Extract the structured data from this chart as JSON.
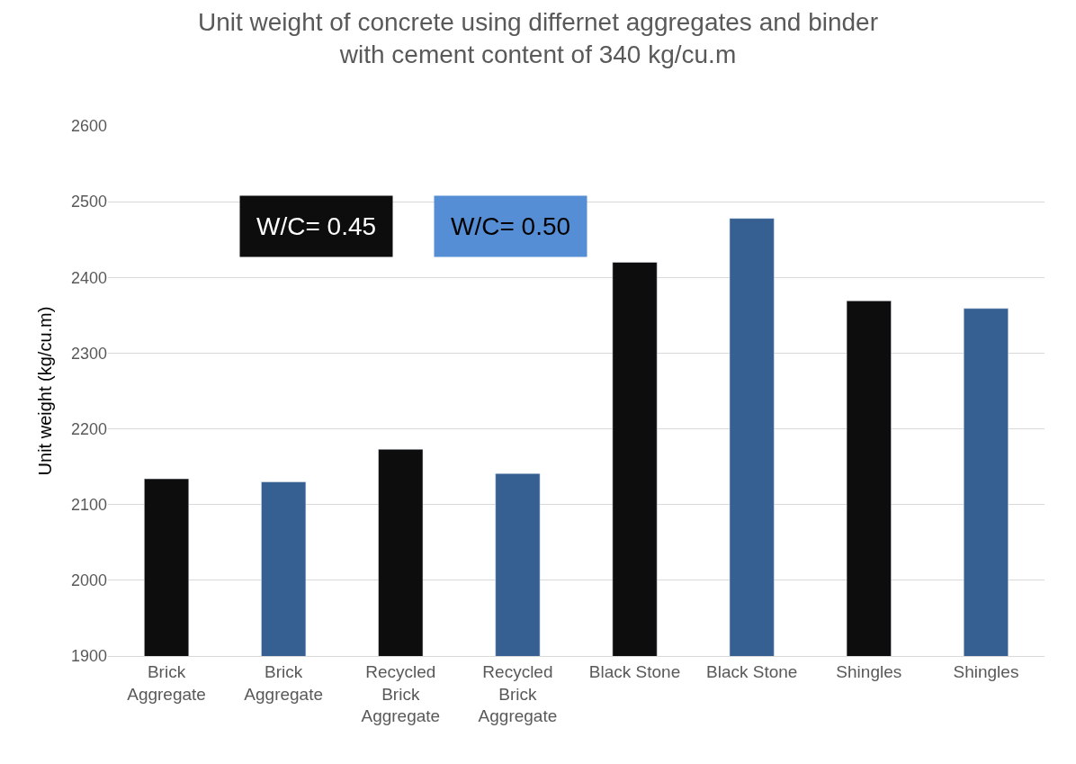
{
  "chart_data": {
    "type": "bar",
    "title": "Unit weight of concrete using differnet aggregates and binder with cement content of 340 kg/cu.m",
    "ylabel": "Unit weight (kg/cu.m)",
    "categories": [
      "Brick Aggregate",
      "Brick Aggregate",
      "Recycled Brick Aggregate",
      "Recycled Brick Aggregate",
      "Black Stone",
      "Black Stone",
      "Shingles",
      "Shingles"
    ],
    "series": [
      {
        "values": [
          2134,
          2130,
          2173,
          2141,
          2420,
          2478,
          2369,
          2359
        ],
        "colors": [
          "#0d0d0d",
          "#376092",
          "#0d0d0d",
          "#376092",
          "#0d0d0d",
          "#376092",
          "#0d0d0d",
          "#376092"
        ]
      }
    ],
    "annotations": [
      "W/C= 0.45",
      "W/C= 0.50"
    ],
    "ylim": [
      1900,
      2600
    ],
    "yticks": [
      1900,
      2000,
      2100,
      2200,
      2300,
      2400,
      2500,
      2600
    ],
    "grid": "y"
  }
}
